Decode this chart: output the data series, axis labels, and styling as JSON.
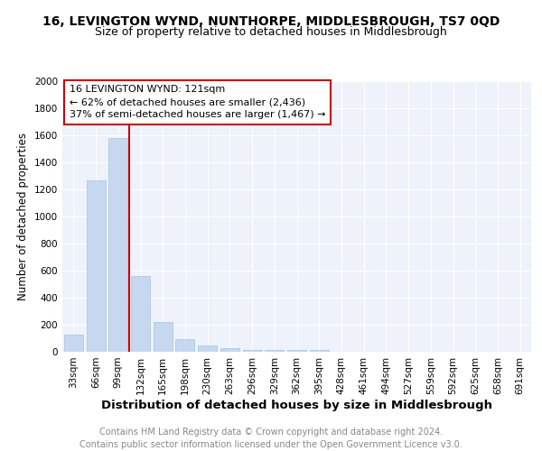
{
  "title1": "16, LEVINGTON WYND, NUNTHORPE, MIDDLESBROUGH, TS7 0QD",
  "title2": "Size of property relative to detached houses in Middlesbrough",
  "xlabel": "Distribution of detached houses by size in Middlesbrough",
  "ylabel": "Number of detached properties",
  "categories": [
    "33sqm",
    "66sqm",
    "99sqm",
    "132sqm",
    "165sqm",
    "198sqm",
    "230sqm",
    "263sqm",
    "296sqm",
    "329sqm",
    "362sqm",
    "395sqm",
    "428sqm",
    "461sqm",
    "494sqm",
    "527sqm",
    "559sqm",
    "592sqm",
    "625sqm",
    "658sqm",
    "691sqm"
  ],
  "values": [
    130,
    1270,
    1580,
    560,
    220,
    95,
    50,
    25,
    15,
    15,
    15,
    15,
    0,
    0,
    0,
    0,
    0,
    0,
    0,
    0,
    0
  ],
  "bar_color": "#c5d8f0",
  "bar_edge_color": "#a8c4e0",
  "vline_color": "#cc0000",
  "annotation_line1": "16 LEVINGTON WYND: 121sqm",
  "annotation_line2": "← 62% of detached houses are smaller (2,436)",
  "annotation_line3": "37% of semi-detached houses are larger (1,467) →",
  "annotation_box_color": "#cc0000",
  "ylim": [
    0,
    2000
  ],
  "yticks": [
    0,
    200,
    400,
    600,
    800,
    1000,
    1200,
    1400,
    1600,
    1800,
    2000
  ],
  "footer": "Contains HM Land Registry data © Crown copyright and database right 2024.\nContains public sector information licensed under the Open Government Licence v3.0.",
  "bg_color": "#eef2fa",
  "title1_fontsize": 10,
  "title2_fontsize": 9,
  "xlabel_fontsize": 9.5,
  "ylabel_fontsize": 8.5,
  "tick_fontsize": 7.5,
  "annotation_fontsize": 8,
  "footer_fontsize": 7
}
